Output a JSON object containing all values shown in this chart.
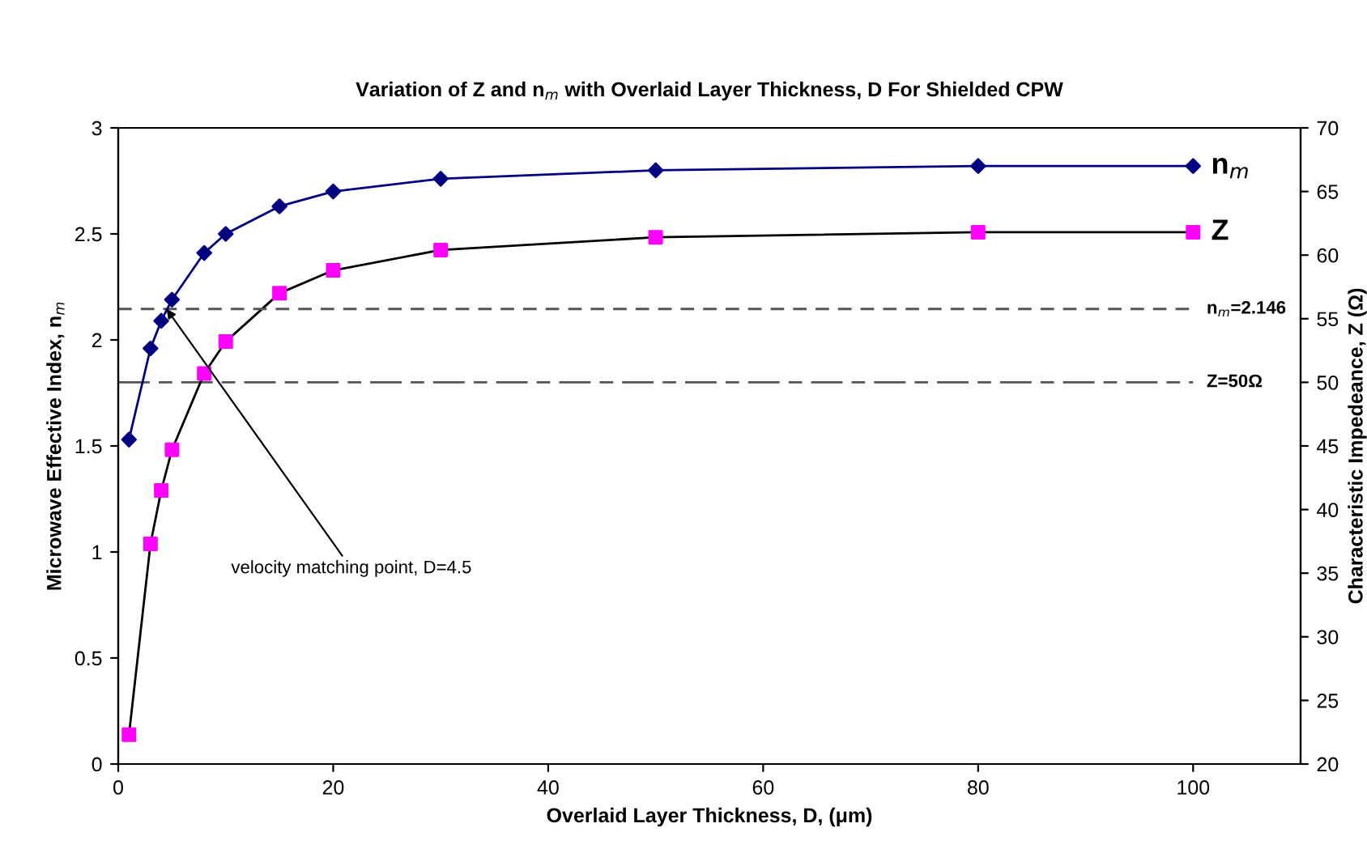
{
  "chart_data": {
    "type": "line",
    "title": "Variation of Z and n$_{m}$ with Overlaid Layer Thickness, D For Shielded CPW",
    "xlabel": "Overlaid Layer Thickness, D, (μm)",
    "ylabel": "Microwave Effective Index, n$_{m}$",
    "y2label": "Characteristic Impedeance, Z (Ω)",
    "x": [
      1,
      3,
      4,
      5,
      8,
      10,
      15,
      20,
      30,
      50,
      80,
      100
    ],
    "series": [
      {
        "name": "n$_{m}$",
        "color": "#000080",
        "marker": "diamond",
        "values": [
          1.53,
          1.96,
          2.09,
          2.19,
          2.41,
          2.5,
          2.63,
          2.7,
          2.76,
          2.8,
          2.82,
          2.82
        ]
      },
      {
        "name": "Z",
        "color": "#000000",
        "colors": [
          "#ff00ff",
          "#ff00ff",
          "#ff00ff",
          "#ff00ff",
          "#ff00ff",
          "#ff00ff",
          "#ff00ff",
          "#ff00ff",
          "#ff00ff",
          "#ff00ff",
          "#ff00ff",
          "#ff00ff"
        ],
        "marker": "square",
        "axis": "y2",
        "values": [
          22.3,
          37.3,
          41.5,
          44.7,
          50.7,
          53.2,
          57.0,
          58.8,
          60.4,
          61.4,
          61.8,
          61.8
        ]
      }
    ],
    "xlim": [
      0,
      110
    ],
    "xticks": [
      0,
      20,
      40,
      60,
      80,
      100
    ],
    "ylim": [
      0,
      3
    ],
    "yticks": [
      0,
      0.5,
      1,
      1.5,
      2,
      2.5,
      3
    ],
    "y2lim": [
      20,
      70
    ],
    "y2ticks": [
      20,
      25,
      30,
      35,
      40,
      45,
      50,
      55,
      60,
      65,
      70
    ],
    "ref_lines": [
      {
        "axis": "y",
        "value": 2.146,
        "label": "n$_{m}$=2.146",
        "color": "#555555",
        "line_style": "dashed"
      },
      {
        "axis": "y2",
        "value": 50,
        "label": "Z=50Ω",
        "color": "#555555",
        "line_style": "longdash"
      }
    ],
    "annotations": [
      {
        "text": "velocity matching point, D=4.5",
        "x": 4.5,
        "y": 2.146
      }
    ],
    "grid": false,
    "legend": false
  }
}
